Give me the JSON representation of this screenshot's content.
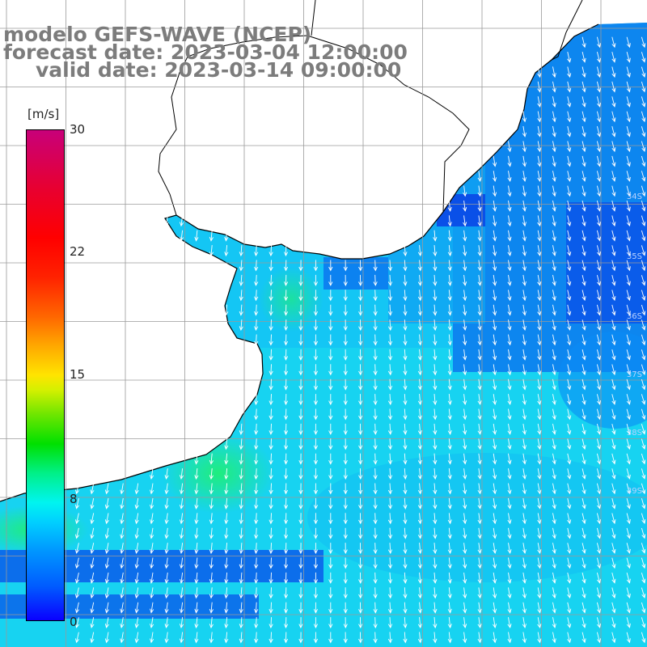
{
  "title": {
    "line1": "modelo GEFS-WAVE (NCEP)",
    "line2": "forecast date: 2023-03-04 12:00:00",
    "line3": "valid date: 2023-03-14 09:00:00"
  },
  "colorbar": {
    "unit": "[m/s]",
    "ticks": [
      "30",
      "22",
      "15",
      "8",
      "0"
    ],
    "tick_values": [
      30,
      22,
      15,
      8,
      0
    ],
    "range": [
      0,
      30
    ]
  },
  "lat_labels": [
    "34S",
    "35S",
    "36S",
    "37S",
    "38S",
    "39S"
  ],
  "colors": {
    "land": "#ffffff",
    "coast": "#000000",
    "grid": "#9a9a9a",
    "arrows": "#ffffff",
    "title": "#7c7c7c",
    "deep_blue": "#0a4ee8",
    "mid_blue": "#0a8cf5",
    "cyan": "#12d7f5",
    "aqua": "#1ef0c8",
    "green": "#2cf08a"
  },
  "field": {
    "variable": "wind-speed-arrows",
    "arrow_direction": "from-north-to-south"
  }
}
